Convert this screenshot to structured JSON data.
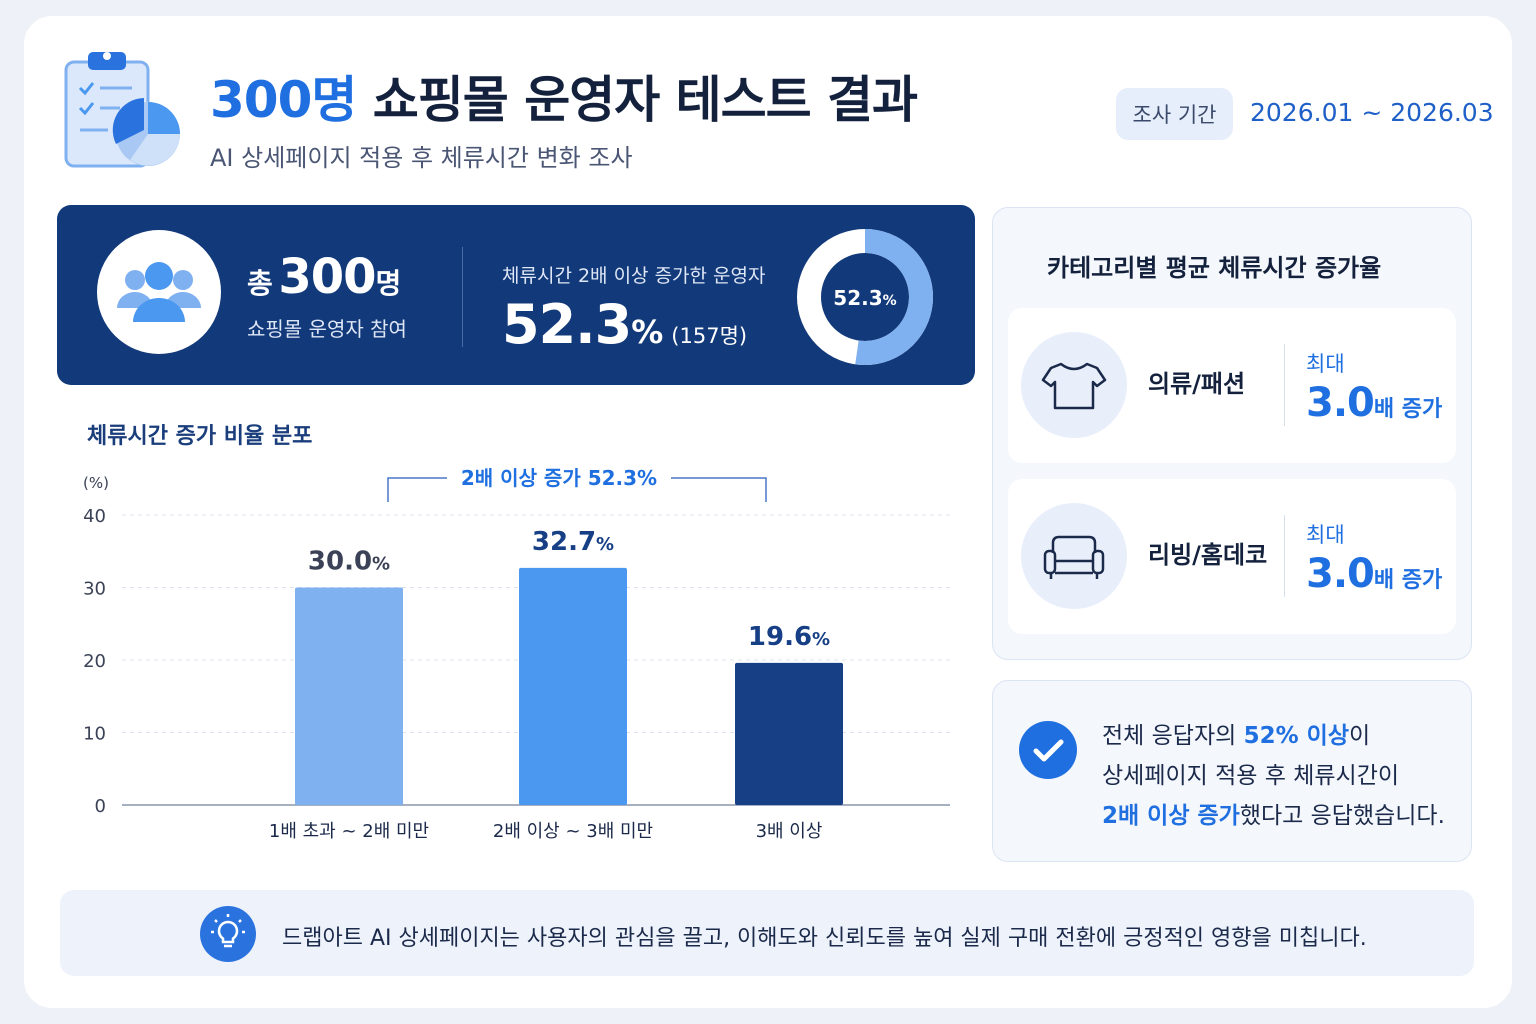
{
  "header": {
    "title_highlight": "300명",
    "title_rest": "쇼핑몰 운영자 테스트 결과",
    "subtitle": "AI 상세페이지 적용 후 체류시간 변화 조사",
    "period_label": "조사 기간",
    "period_value": "2026.01 ~ 2026.03"
  },
  "summary": {
    "total_prefix": "총",
    "total_number": "300",
    "total_suffix": "명",
    "total_caption": "쇼핑몰 운영자 참여",
    "rate_label": "체류시간 2배 이상 증가한 운영자",
    "rate_value": "52.3",
    "rate_unit": "%",
    "rate_count": "(157명)",
    "donut_value": 52.3,
    "donut_label": "52.3",
    "donut_unit": "%"
  },
  "chart_data": {
    "type": "bar",
    "title": "체류시간 증가 비율 분포",
    "ylabel": "(%)",
    "xlabel": "",
    "ylim": [
      0,
      40
    ],
    "yticks": [
      0,
      10,
      20,
      30,
      40
    ],
    "grid": true,
    "categories": [
      "1배 초과 ~ 2배 미만",
      "2배 이상 ~ 3배 미만",
      "3배 이상"
    ],
    "values": [
      30.0,
      32.7,
      19.6
    ],
    "value_labels": [
      "30.0",
      "32.7",
      "19.6"
    ],
    "value_unit": "%",
    "bar_colors": [
      "#7fb0f0",
      "#4a98f0",
      "#163f86"
    ],
    "label_colors": [
      "#3b4257",
      "#163f86",
      "#163f86"
    ],
    "annotation": "2배 이상 증가 52.3%",
    "annotation_span": [
      "2배 이상 ~ 3배 미만",
      "3배 이상"
    ]
  },
  "categories_panel": {
    "title": "카테고리별 평균 체류시간 증가율",
    "items": [
      {
        "name": "의류/패션",
        "max_label": "최대",
        "value": "3.0",
        "unit": "배 증가",
        "icon": "tshirt-icon"
      },
      {
        "name": "리빙/홈데코",
        "max_label": "최대",
        "value": "3.0",
        "unit": "배 증가",
        "icon": "sofa-icon"
      }
    ]
  },
  "note": {
    "l1_pre": "전체 응답자의 ",
    "l1_hl": "52% 이상",
    "l1_post": "이",
    "l2": "상세페이지 적용 후 체류시간이",
    "l3_hl": "2배 이상 증가",
    "l3_post": "했다고 응답했습니다."
  },
  "footer": {
    "text": "드랩아트 AI 상세페이지는 사용자의 관심을 끌고, 이해도와 신뢰도를 높여 실제 구매 전환에 긍정적인 영향을 미칩니다."
  },
  "colors": {
    "accent": "#1f6fe0",
    "navy": "#12397a",
    "light_blue": "#7fb0f0"
  }
}
